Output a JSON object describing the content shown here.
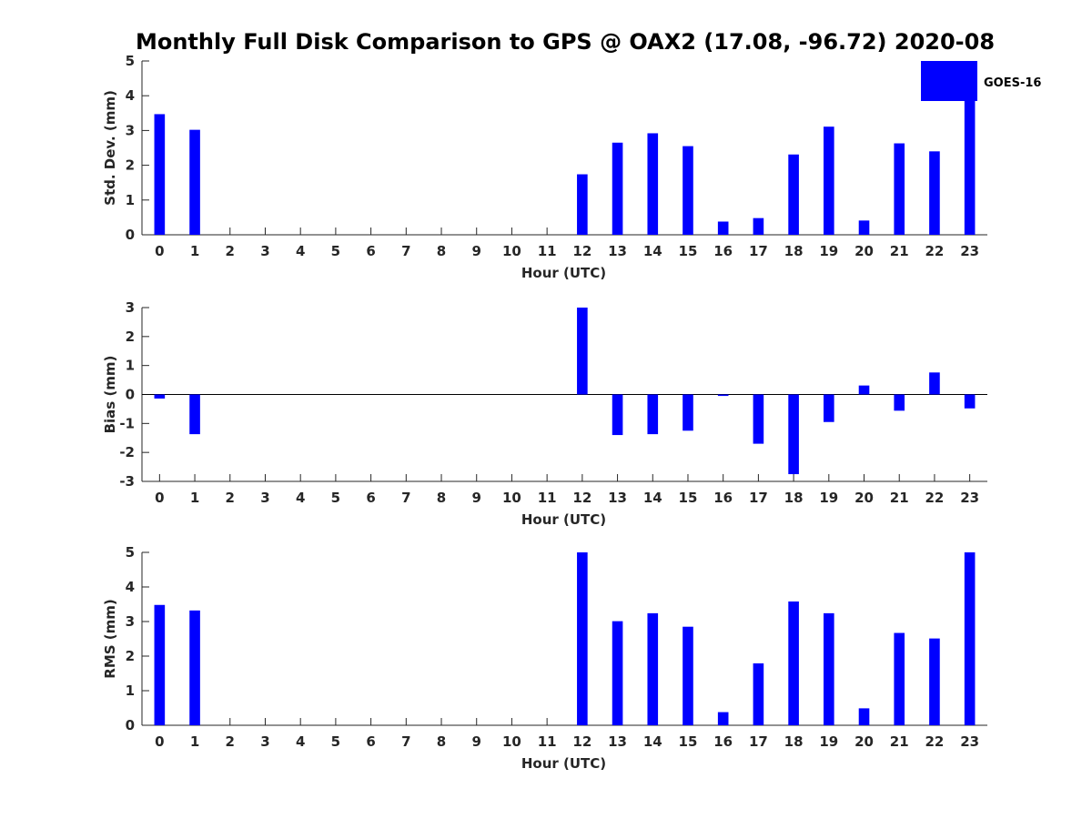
{
  "figure_title": "Monthly Full Disk Comparison to GPS @ OAX2 (17.08, -96.72) 2020-08",
  "legend": {
    "label": "GOES-16",
    "color": "#0000ff"
  },
  "colors": {
    "bar": "#0000ff",
    "axis": "#262626",
    "background": "#ffffff"
  },
  "chart_data": [
    {
      "type": "bar",
      "ylabel": "Std. Dev. (mm)",
      "xlabel": "Hour (UTC)",
      "categories": [
        "0",
        "1",
        "2",
        "3",
        "4",
        "5",
        "6",
        "7",
        "8",
        "9",
        "10",
        "11",
        "12",
        "13",
        "14",
        "15",
        "16",
        "17",
        "18",
        "19",
        "20",
        "21",
        "22",
        "23"
      ],
      "ylim": [
        0,
        5
      ],
      "yticks": [
        0,
        1,
        2,
        3,
        4,
        5
      ],
      "series": [
        {
          "name": "GOES-16",
          "values": [
            3.47,
            3.02,
            null,
            null,
            null,
            null,
            null,
            null,
            null,
            null,
            null,
            null,
            1.74,
            2.65,
            2.92,
            2.55,
            0.38,
            0.48,
            2.31,
            3.11,
            0.41,
            2.63,
            2.4,
            5.0
          ]
        }
      ]
    },
    {
      "type": "bar",
      "ylabel": "Bias (mm)",
      "xlabel": "Hour (UTC)",
      "categories": [
        "0",
        "1",
        "2",
        "3",
        "4",
        "5",
        "6",
        "7",
        "8",
        "9",
        "10",
        "11",
        "12",
        "13",
        "14",
        "15",
        "16",
        "17",
        "18",
        "19",
        "20",
        "21",
        "22",
        "23"
      ],
      "ylim": [
        -3,
        3
      ],
      "yticks": [
        -3,
        -2,
        -1,
        0,
        1,
        2,
        3
      ],
      "series": [
        {
          "name": "GOES-16",
          "values": [
            -0.14,
            -1.37,
            null,
            null,
            null,
            null,
            null,
            null,
            null,
            null,
            null,
            null,
            3.0,
            -1.4,
            -1.37,
            -1.25,
            -0.05,
            -1.7,
            -2.75,
            -0.95,
            0.31,
            -0.56,
            0.76,
            -0.48
          ]
        }
      ]
    },
    {
      "type": "bar",
      "ylabel": "RMS (mm)",
      "xlabel": "Hour (UTC)",
      "categories": [
        "0",
        "1",
        "2",
        "3",
        "4",
        "5",
        "6",
        "7",
        "8",
        "9",
        "10",
        "11",
        "12",
        "13",
        "14",
        "15",
        "16",
        "17",
        "18",
        "19",
        "20",
        "21",
        "22",
        "23"
      ],
      "ylim": [
        0,
        5
      ],
      "yticks": [
        0,
        1,
        2,
        3,
        4,
        5
      ],
      "series": [
        {
          "name": "GOES-16",
          "values": [
            3.48,
            3.32,
            null,
            null,
            null,
            null,
            null,
            null,
            null,
            null,
            null,
            null,
            5.0,
            3.01,
            3.24,
            2.85,
            0.38,
            1.79,
            3.58,
            3.24,
            0.49,
            2.67,
            2.51,
            5.0
          ]
        }
      ]
    }
  ]
}
